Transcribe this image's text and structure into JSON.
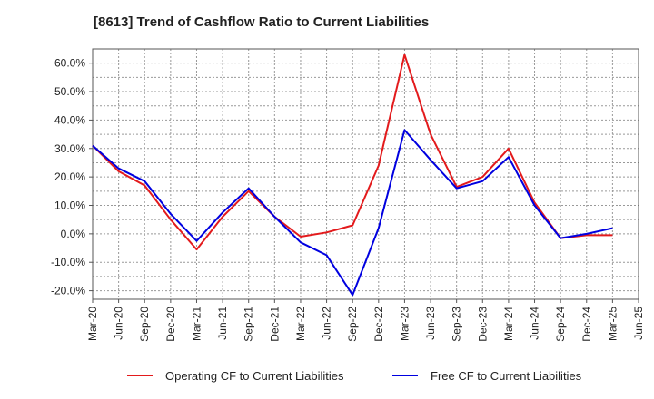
{
  "chart_data": {
    "type": "line",
    "title": "[8613]  Trend of Cashflow Ratio to Current Liabilities",
    "xlabel": "",
    "ylabel": "",
    "x_tick_labels": [
      "Mar-20",
      "Jun-20",
      "Sep-20",
      "Dec-20",
      "Mar-21",
      "Jun-21",
      "Sep-21",
      "Dec-21",
      "Mar-22",
      "Jun-22",
      "Sep-22",
      "Dec-22",
      "Mar-23",
      "Jun-23",
      "Sep-23",
      "Dec-23",
      "Mar-24",
      "Jun-24",
      "Sep-24",
      "Dec-24",
      "Mar-25",
      "Jun-25"
    ],
    "y_tick_labels": [
      "60.0%",
      "50.0%",
      "40.0%",
      "30.0%",
      "20.0%",
      "10.0%",
      "0.0%",
      "-10.0%",
      "-20.0%"
    ],
    "y_ticks": [
      60,
      50,
      40,
      30,
      20,
      10,
      0,
      -10,
      -20
    ],
    "ylim": [
      -23,
      65
    ],
    "grid": true,
    "legend_position": "bottom",
    "x": [
      "Mar-20",
      "Jun-20",
      "Sep-20",
      "Dec-20",
      "Mar-21",
      "Jun-21",
      "Sep-21",
      "Dec-21",
      "Mar-22",
      "Jun-22",
      "Sep-22",
      "Dec-22",
      "Mar-23",
      "Jun-23",
      "Sep-23",
      "Dec-23",
      "Mar-24",
      "Jun-24",
      "Sep-24",
      "Dec-24",
      "Mar-25"
    ],
    "series": [
      {
        "name": "Operating CF to Current Liabilities",
        "color": "#e31a1c",
        "values": [
          31,
          22,
          17,
          5,
          -5.5,
          6,
          15,
          6,
          -1,
          0.5,
          3,
          24,
          63,
          35,
          16.5,
          20,
          30,
          11,
          -1.5,
          -0.5,
          -0.5
        ]
      },
      {
        "name": "Free CF to Current Liabilities",
        "color": "#0000e0",
        "values": [
          31,
          23,
          18.5,
          7,
          -2.5,
          7.5,
          16,
          6,
          -3,
          -7.5,
          -21.5,
          2,
          36.5,
          26,
          16,
          18.5,
          27,
          10,
          -1.5,
          0,
          2
        ]
      }
    ]
  }
}
